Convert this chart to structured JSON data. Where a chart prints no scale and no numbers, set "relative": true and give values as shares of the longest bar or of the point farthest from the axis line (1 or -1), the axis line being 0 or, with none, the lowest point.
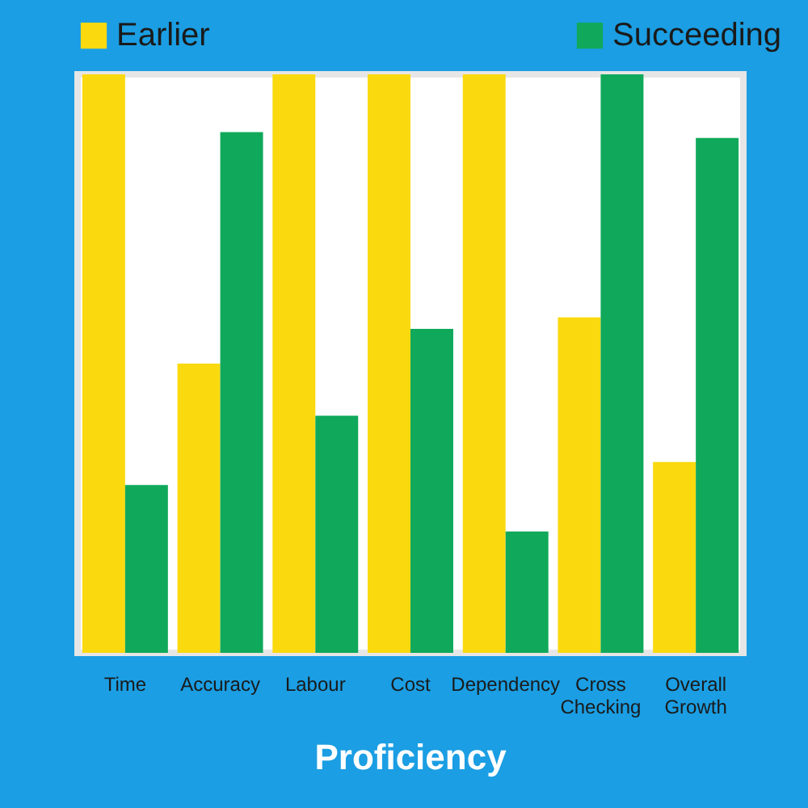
{
  "chart_data": {
    "type": "bar",
    "title": "Proficiency",
    "categories": [
      "Time",
      "Accuracy",
      "Labour",
      "Cost",
      "Dependency",
      "Cross Checking",
      "Overall Growth"
    ],
    "relative": true,
    "series": [
      {
        "name": "Earlier",
        "color": "#fbd90f",
        "values": [
          1,
          0.5,
          1,
          1,
          1,
          0.58,
          0.33
        ]
      },
      {
        "name": "Succeeding",
        "color": "#10a95b",
        "values": [
          0.29,
          0.9,
          0.41,
          0.56,
          0.21,
          1,
          0.89
        ]
      }
    ],
    "legend": "top",
    "grid": false
  }
}
